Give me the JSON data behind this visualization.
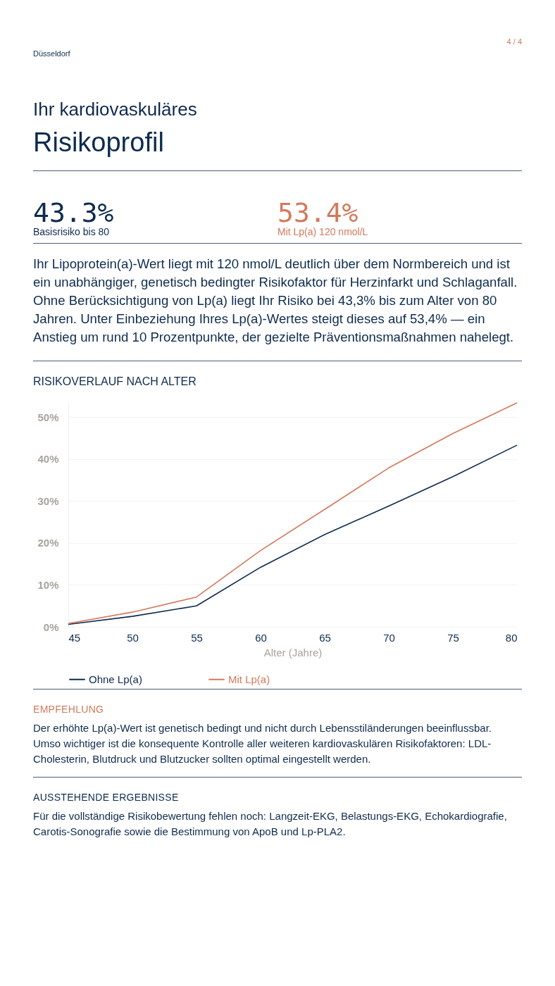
{
  "chart_data": {
    "type": "line",
    "title": "RISIKOVERLAUF NACH ALTER",
    "xlabel": "Alter (Jahre)",
    "x": [
      45,
      50,
      55,
      60,
      65,
      70,
      75,
      80
    ],
    "series": [
      {
        "name": "Ohne Lp(a)",
        "color": "#0d2b4e",
        "values": [
          0.6,
          2.5,
          5.0,
          14.2,
          22.0,
          28.8,
          35.8,
          43.3
        ]
      },
      {
        "name": "Mit Lp(a)",
        "color": "#d4795c",
        "values": [
          0.8,
          3.5,
          7.1,
          18.2,
          28.0,
          37.9,
          46.1,
          53.4
        ]
      }
    ],
    "xlim": [
      45,
      80
    ],
    "xticks": [
      45,
      50,
      55,
      60,
      65,
      70,
      75,
      80
    ],
    "ylim": [
      0,
      53.4
    ],
    "yticks": [
      {
        "value": 0,
        "label": "0%"
      },
      {
        "value": 10,
        "label": "10%"
      },
      {
        "value": 20,
        "label": "20%"
      },
      {
        "value": 30,
        "label": "30%"
      },
      {
        "value": 40,
        "label": "40%"
      },
      {
        "value": 50,
        "label": "50%"
      }
    ],
    "grid": "y",
    "legend": "bottom",
    "marker": "none",
    "line_style": "solid",
    "annotations": [
      "4 / 4",
      "Düsseldorf",
      "Ihr kardiovaskuläres",
      "Risikoprofil",
      "43.3%",
      "Basisrisiko bis 80",
      "53.4%",
      "Mit Lp(a) 120 nmol/L",
      "Ihr Lipoprotein(a)-Wert liegt mit 120 nmol/L deutlich über dem Normbereich und ist ein unabhängiger, genetisch bedingter Risikofaktor für Herzinfarkt und Schlaganfall. Ohne Berücksichtigung von Lp(a) liegt Ihr Risiko bei 43,3% bis zum Alter von 80 Jahren. Unter Einbeziehung Ihres Lp(a)-Wertes steigt dieses auf 53,4% — ein Anstieg um rund 10 Prozentpunkte, der gezielte Präventionsmaßnahmen nahelegt.",
      "EMPFEHLUNG",
      "Der erhöhte Lp(a)-Wert ist genetisch bedingt und nicht durch Lebensstiländerungen beeinflussbar. Umso wichtiger ist die konsequente Kontrolle aller weiteren kardiovaskulären Risikofaktoren: LDL-Cholesterin, Blutdruck und Blutzucker sollten optimal eingestellt werden.",
      "AUSSTEHENDE ERGEBNISSE",
      "Für die vollständige Risikobewertung fehlen noch: Langzeit-EKG, Belastungs-EKG, Echokardiografie, Carotis-Sonografie sowie die Bestimmung von ApoB und Lp-PLA2."
    ]
  }
}
